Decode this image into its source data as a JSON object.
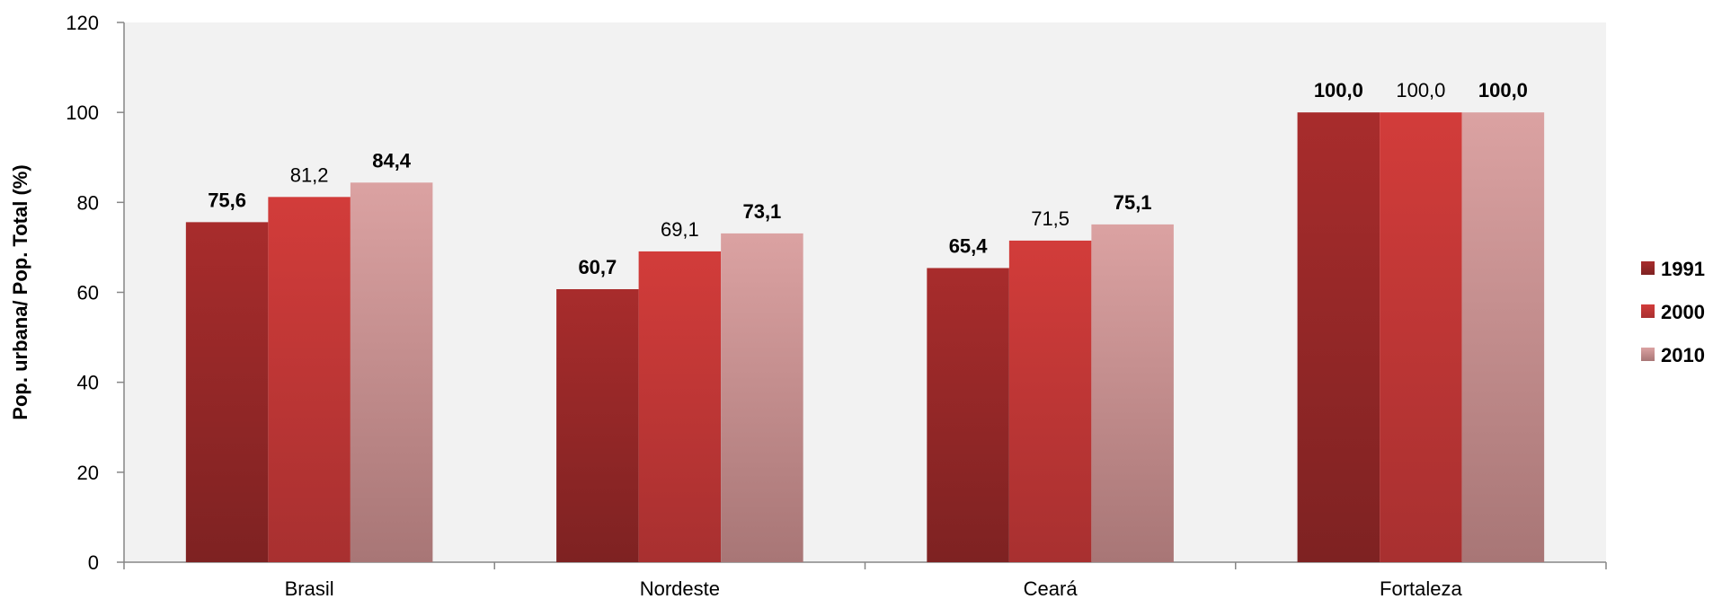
{
  "chart_data": {
    "type": "bar",
    "title": "",
    "xlabel": "",
    "ylabel": "Pop. urbana/ Pop. Total (%)",
    "categories": [
      "Brasil",
      "Nordeste",
      "Ceará",
      "Fortaleza"
    ],
    "ylim": [
      0,
      120
    ],
    "yticks": [
      0,
      20,
      40,
      60,
      80,
      100,
      120
    ],
    "grid": false,
    "legend_position": "right",
    "series": [
      {
        "name": "1991",
        "values": [
          75.6,
          60.7,
          65.4,
          100.0
        ],
        "labels": [
          "75,6",
          "60,7",
          "65,4",
          "100,0"
        ],
        "label_bold": true,
        "color_top": "#a82c2c",
        "color_bottom": "#7e2222"
      },
      {
        "name": "2000",
        "values": [
          81.2,
          69.1,
          71.5,
          100.0
        ],
        "labels": [
          "81,2",
          "69,1",
          "71,5",
          "100,0"
        ],
        "label_bold": false,
        "color_top": "#d23c3a",
        "color_bottom": "#a83030"
      },
      {
        "name": "2010",
        "values": [
          84.4,
          73.1,
          75.1,
          100.0
        ],
        "labels": [
          "84,4",
          "73,1",
          "75,1",
          "100,0"
        ],
        "label_bold": true,
        "color_top": "#dba2a2",
        "color_bottom": "#a87676"
      }
    ],
    "plot_background": "#f2f2f2"
  }
}
